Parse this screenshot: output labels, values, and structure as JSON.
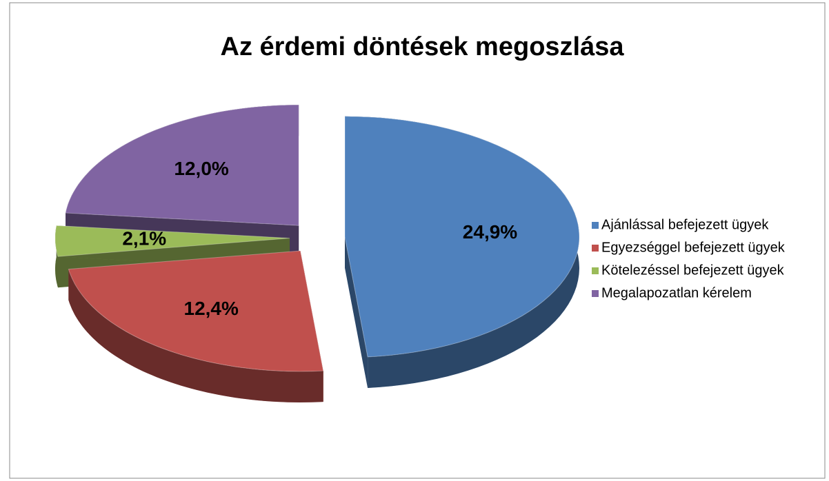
{
  "chart_data": {
    "type": "pie",
    "title": "Az érdemi döntések megoszlása",
    "categories": [
      "Ajánlással befejezett ügyek",
      "Egyezséggel befejezett ügyek",
      "Kötelezéssel befejezett ügyek",
      "Megalapozatlan kérelem"
    ],
    "values": [
      24.9,
      12.4,
      2.1,
      12.0
    ],
    "value_labels": [
      "24,9%",
      "12,4%",
      "2,1%",
      "12,0%"
    ],
    "colors": [
      "#4f81bd",
      "#c0504d",
      "#9bbb59",
      "#8064a2"
    ],
    "legend": "right"
  }
}
